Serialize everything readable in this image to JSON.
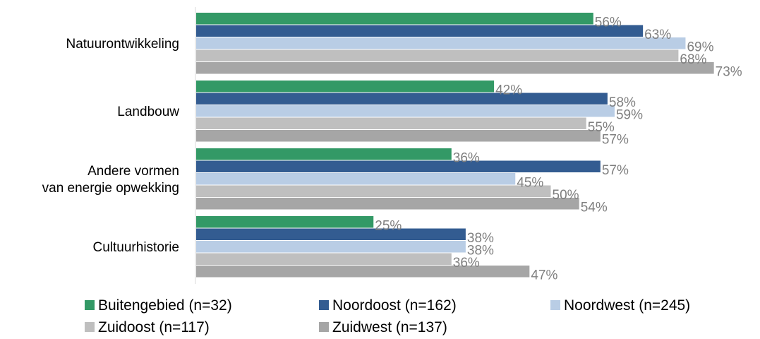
{
  "chart_data": {
    "type": "bar",
    "orientation": "horizontal",
    "title": "",
    "categories": [
      "Natuurontwikkeling",
      "Landbouw",
      "Andere vormen van energie opwekking",
      "Cultuurhistorie"
    ],
    "category_lines": [
      [
        "Natuurontwikkeling"
      ],
      [
        "Landbouw"
      ],
      [
        "Andere vormen",
        "van energie opwekking"
      ],
      [
        "Cultuurhistorie"
      ]
    ],
    "series": [
      {
        "name": "Buitengebied (n=32)",
        "color": "#339966",
        "values": [
          56,
          42,
          36,
          25
        ]
      },
      {
        "name": "Noordoost (n=162)",
        "color": "#335c91",
        "values": [
          63,
          58,
          57,
          38
        ]
      },
      {
        "name": "Noordwest (n=245)",
        "color": "#b9cde5",
        "values": [
          69,
          59,
          45,
          38
        ]
      },
      {
        "name": "Zuidoost (n=117)",
        "color": "#bfbfbf",
        "values": [
          68,
          55,
          50,
          36
        ]
      },
      {
        "name": "Zuidwest (n=137)",
        "color": "#a6a6a6",
        "values": [
          73,
          57,
          54,
          47
        ]
      }
    ],
    "value_suffix": "%",
    "xlim": [
      0,
      100
    ],
    "grid": false,
    "legend_position": "bottom"
  }
}
